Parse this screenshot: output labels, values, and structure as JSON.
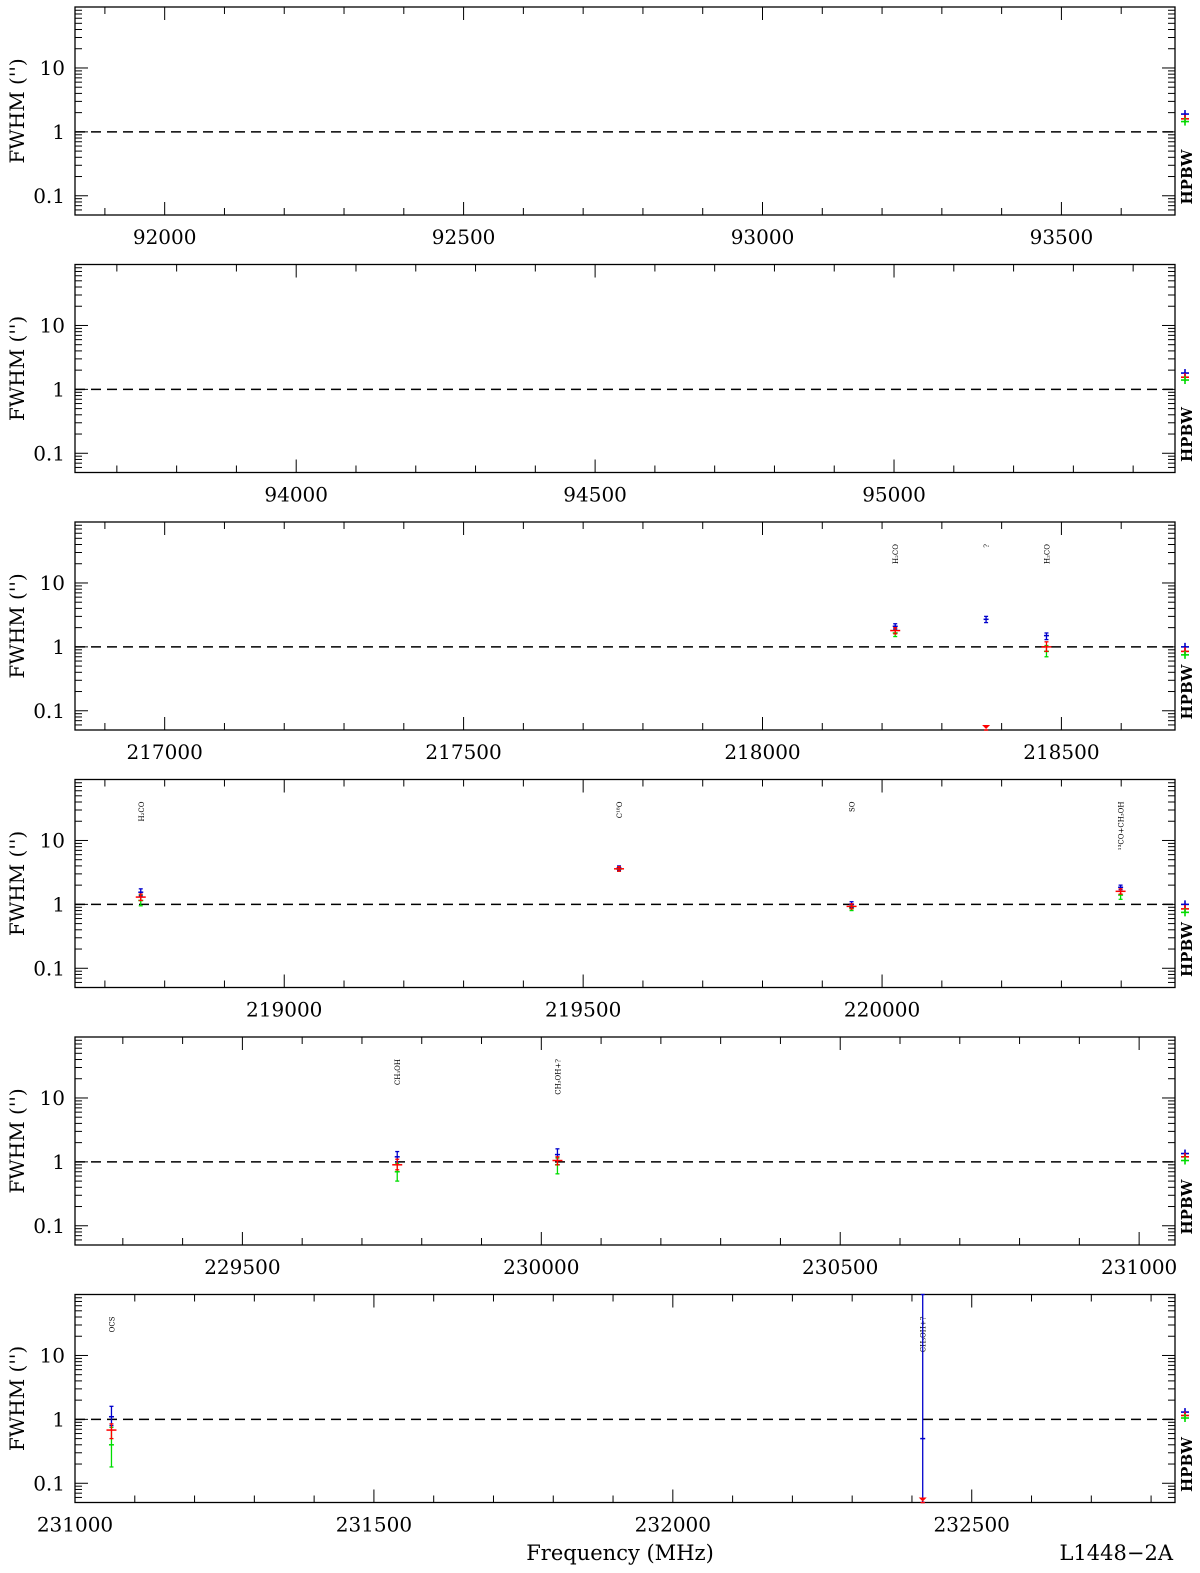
{
  "figure": {
    "xlabel": "Frequency (MHz)",
    "source_label": "L1448−2A"
  },
  "colors": {
    "axes": "#000000",
    "reference_line": "#000000",
    "blue": "#0000cc",
    "red": "#ff0000",
    "green": "#00dd00"
  },
  "chart_data": [
    {
      "type": "scatter",
      "ylabel": "FWHM ('')",
      "right_label": "HPBW",
      "yscale": "log",
      "xlim": [
        91850,
        93690
      ],
      "ylim": [
        0.05,
        90
      ],
      "yticks": [
        {
          "value": 0.1,
          "label": "0.1"
        },
        {
          "value": 1,
          "label": "1"
        },
        {
          "value": 10,
          "label": "10"
        }
      ],
      "xticks": [
        92000,
        92500,
        93000,
        93500
      ],
      "xtick_labels": [
        "92000",
        "92500",
        "93000",
        "93500"
      ],
      "reference_line": 1,
      "hpbw": {
        "blue": 1.9,
        "red": 1.6,
        "green": 1.45
      },
      "lines": []
    },
    {
      "type": "scatter",
      "ylabel": "FWHM ('')",
      "right_label": "HPBW",
      "yscale": "log",
      "xlim": [
        93630,
        95470
      ],
      "ylim": [
        0.05,
        90
      ],
      "yticks": [
        {
          "value": 0.1,
          "label": "0.1"
        },
        {
          "value": 1,
          "label": "1"
        },
        {
          "value": 10,
          "label": "10"
        }
      ],
      "xticks": [
        94000,
        94500,
        95000
      ],
      "xtick_labels": [
        "94000",
        "94500",
        "95000"
      ],
      "reference_line": 1,
      "hpbw": {
        "blue": 1.8,
        "red": 1.55,
        "green": 1.4
      },
      "lines": []
    },
    {
      "type": "scatter",
      "ylabel": "FWHM ('')",
      "right_label": "HPBW",
      "yscale": "log",
      "xlim": [
        216850,
        218690
      ],
      "ylim": [
        0.05,
        90
      ],
      "yticks": [
        {
          "value": 0.1,
          "label": "0.1"
        },
        {
          "value": 1,
          "label": "1"
        },
        {
          "value": 10,
          "label": "10"
        }
      ],
      "xticks": [
        217000,
        217500,
        218000,
        218500
      ],
      "xtick_labels": [
        "217000",
        "217500",
        "218000",
        "218500"
      ],
      "reference_line": 1,
      "hpbw": {
        "blue": 1.0,
        "red": 0.85,
        "green": 0.75
      },
      "lines": [
        {
          "label": "H₂CO",
          "freq": 218222,
          "blue": [
            2.1,
            1.9,
            2.3
          ],
          "red": [
            1.8,
            1.6,
            2.0
          ],
          "green": [
            1.65,
            1.45,
            1.9
          ]
        },
        {
          "label": "?",
          "freq": 218374,
          "blue": [
            2.7,
            2.4,
            3.0
          ],
          "red": [
            0.05,
            0.05,
            0.05
          ],
          "green": null
        },
        {
          "label": "H₂CO",
          "freq": 218475,
          "blue": [
            1.5,
            1.3,
            1.65
          ],
          "red": [
            1.0,
            0.85,
            1.2
          ],
          "green": [
            0.85,
            0.7,
            1.05
          ]
        }
      ]
    },
    {
      "type": "scatter",
      "ylabel": "FWHM ('')",
      "right_label": "HPBW",
      "yscale": "log",
      "xlim": [
        218650,
        220490
      ],
      "ylim": [
        0.05,
        90
      ],
      "yticks": [
        {
          "value": 0.1,
          "label": "0.1"
        },
        {
          "value": 1,
          "label": "1"
        },
        {
          "value": 10,
          "label": "10"
        }
      ],
      "xticks": [
        219000,
        219500,
        220000
      ],
      "xtick_labels": [
        "219000",
        "219500",
        "220000"
      ],
      "reference_line": 1,
      "hpbw": {
        "blue": 1.0,
        "red": 0.85,
        "green": 0.75
      },
      "lines": [
        {
          "label": "H₂CO",
          "freq": 218760,
          "blue": [
            1.55,
            1.35,
            1.75
          ],
          "red": [
            1.3,
            1.15,
            1.45
          ],
          "green": [
            1.15,
            0.95,
            1.4
          ]
        },
        {
          "label": "C¹⁸O",
          "freq": 219560,
          "blue": [
            3.7,
            3.4,
            4.0
          ],
          "red": [
            3.6,
            3.3,
            3.9
          ],
          "green": [
            3.55,
            3.3,
            3.8
          ]
        },
        {
          "label": "SO",
          "freq": 219949,
          "blue": [
            1.0,
            0.9,
            1.1
          ],
          "red": [
            0.93,
            0.85,
            1.02
          ],
          "green": [
            0.88,
            0.8,
            0.98
          ]
        },
        {
          "label": "¹³CO+CH₃OH",
          "freq": 220399,
          "blue": [
            1.85,
            1.7,
            2.0
          ],
          "red": [
            1.6,
            1.45,
            1.75
          ],
          "green": [
            1.4,
            1.2,
            1.6
          ]
        }
      ]
    },
    {
      "type": "scatter",
      "ylabel": "FWHM ('')",
      "right_label": "HPBW",
      "yscale": "log",
      "xlim": [
        229220,
        231060
      ],
      "ylim": [
        0.05,
        90
      ],
      "yticks": [
        {
          "value": 0.1,
          "label": "0.1"
        },
        {
          "value": 1,
          "label": "1"
        },
        {
          "value": 10,
          "label": "10"
        }
      ],
      "xticks": [
        229500,
        230000,
        230500,
        231000
      ],
      "xtick_labels": [
        "229500",
        "230000",
        "230500",
        "231000"
      ],
      "reference_line": 1,
      "hpbw": {
        "blue": 1.35,
        "red": 1.2,
        "green": 1.05
      },
      "lines": [
        {
          "label": "CH₃OH",
          "freq": 229759,
          "blue": [
            1.2,
            1.0,
            1.45
          ],
          "red": [
            0.9,
            0.75,
            1.1
          ],
          "green": [
            0.7,
            0.5,
            0.95
          ]
        },
        {
          "label": "CH₃OH+?",
          "freq": 230027,
          "blue": [
            1.3,
            1.05,
            1.6
          ],
          "red": [
            1.05,
            0.9,
            1.2
          ],
          "green": [
            0.9,
            0.65,
            1.15
          ]
        }
      ]
    },
    {
      "type": "scatter",
      "ylabel": "FWHM ('')",
      "right_label": "HPBW",
      "yscale": "log",
      "xlim": [
        231000,
        232840
      ],
      "ylim": [
        0.05,
        90
      ],
      "yticks": [
        {
          "value": 0.1,
          "label": "0.1"
        },
        {
          "value": 1,
          "label": "1"
        },
        {
          "value": 10,
          "label": "10"
        }
      ],
      "xticks": [
        231000,
        231500,
        232000,
        232500
      ],
      "xtick_labels": [
        "231000",
        "231500",
        "232000",
        "232500"
      ],
      "reference_line": 1,
      "hpbw": {
        "blue": 1.3,
        "red": 1.15,
        "green": 1.05
      },
      "lines": [
        {
          "label": "OCS",
          "freq": 231061,
          "blue": [
            1.1,
            0.8,
            1.6
          ],
          "red": [
            0.68,
            0.5,
            0.85
          ],
          "green": [
            0.4,
            0.18,
            0.75
          ]
        },
        {
          "label": "CH₃OH+?",
          "freq": 232418,
          "blue": [
            0.5,
            0.05,
            90
          ],
          "red": [
            0.05,
            0.05,
            0.05
          ],
          "green": null
        }
      ]
    }
  ]
}
